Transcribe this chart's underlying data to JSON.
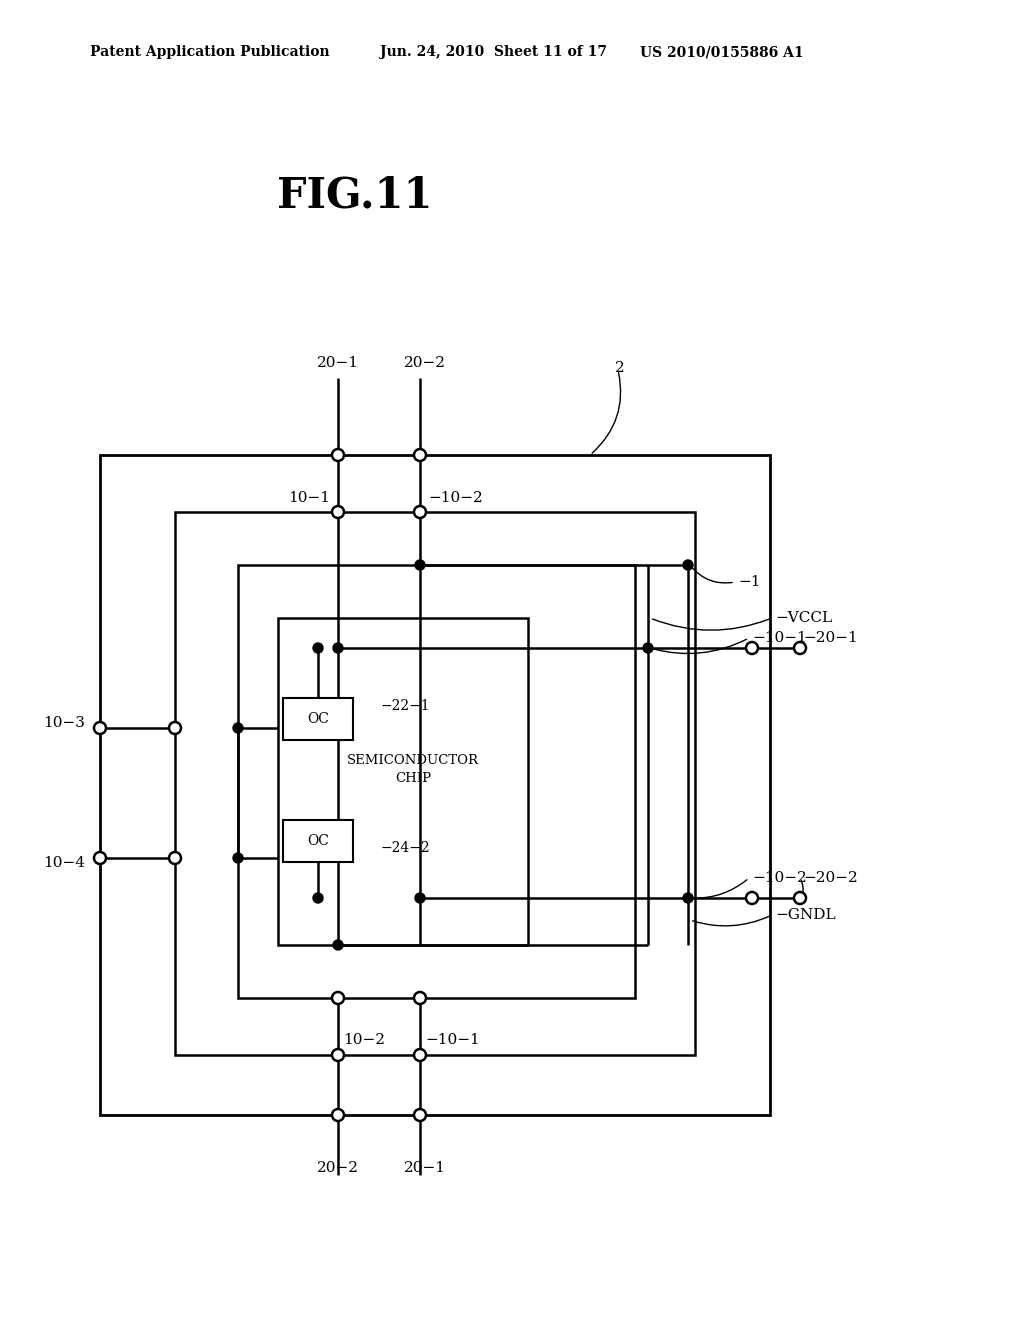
{
  "title": "FIG.11",
  "header_left": "Patent Application Publication",
  "header_mid": "Jun. 24, 2010  Sheet 11 of 17",
  "header_right": "US 2010/0155886 A1",
  "bg_color": "#ffffff",
  "line_color": "#000000",
  "text_color": "#000000"
}
